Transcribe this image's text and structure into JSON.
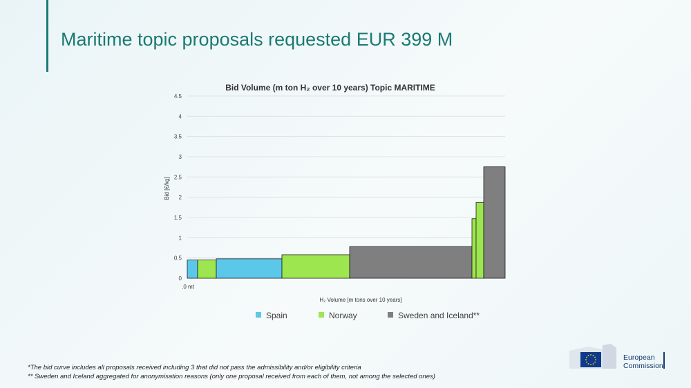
{
  "slide": {
    "title": "Maritime topic proposals requested EUR 399 M",
    "footnotes": [
      "*The bid curve includes all proposals received including 3 that did not pass the admissibility and/or eligibility criteria",
      "** Sweden and Iceland aggregated for anonymisation reasons (only one proposal received from each of them, not among the selected ones)"
    ]
  },
  "logo": {
    "line1": "European",
    "line2": "Commission",
    "flag_color": "#0f3a8c",
    "star_color": "#ffd500"
  },
  "chart_data": {
    "type": "bar",
    "title": "Bid Volume (m ton H₂ over 10 years) Topic MARITIME",
    "xlabel": "H₂ Volume [m tons over 10 years]",
    "ylabel": "Bid [€/kg]",
    "x_tick_label": ".0 mt",
    "ylim": [
      0,
      4.5
    ],
    "yticks": [
      "0",
      "0.5",
      "1",
      "1.5",
      "2",
      "2.5",
      "3",
      "3.5",
      "4",
      "4.5"
    ],
    "grid": true,
    "legend_position": "bottom",
    "series": [
      {
        "name": "Spain",
        "color": "#5bc8ea"
      },
      {
        "name": "Norway",
        "color": "#9ee64f"
      },
      {
        "name": "Sweden and Iceland**",
        "color": "#7f7f7f"
      }
    ],
    "bars": [
      {
        "series": 0,
        "width": 0.15,
        "value": 0.45
      },
      {
        "series": 1,
        "width": 0.27,
        "value": 0.45
      },
      {
        "series": 0,
        "width": 0.95,
        "value": 0.48
      },
      {
        "series": 1,
        "width": 0.98,
        "value": 0.58
      },
      {
        "series": 2,
        "width": 1.77,
        "value": 0.78
      },
      {
        "series": 1,
        "width": 0.06,
        "value": 1.47
      },
      {
        "series": 1,
        "width": 0.11,
        "value": 1.87
      },
      {
        "series": 2,
        "width": 0.31,
        "value": 2.75
      }
    ]
  }
}
